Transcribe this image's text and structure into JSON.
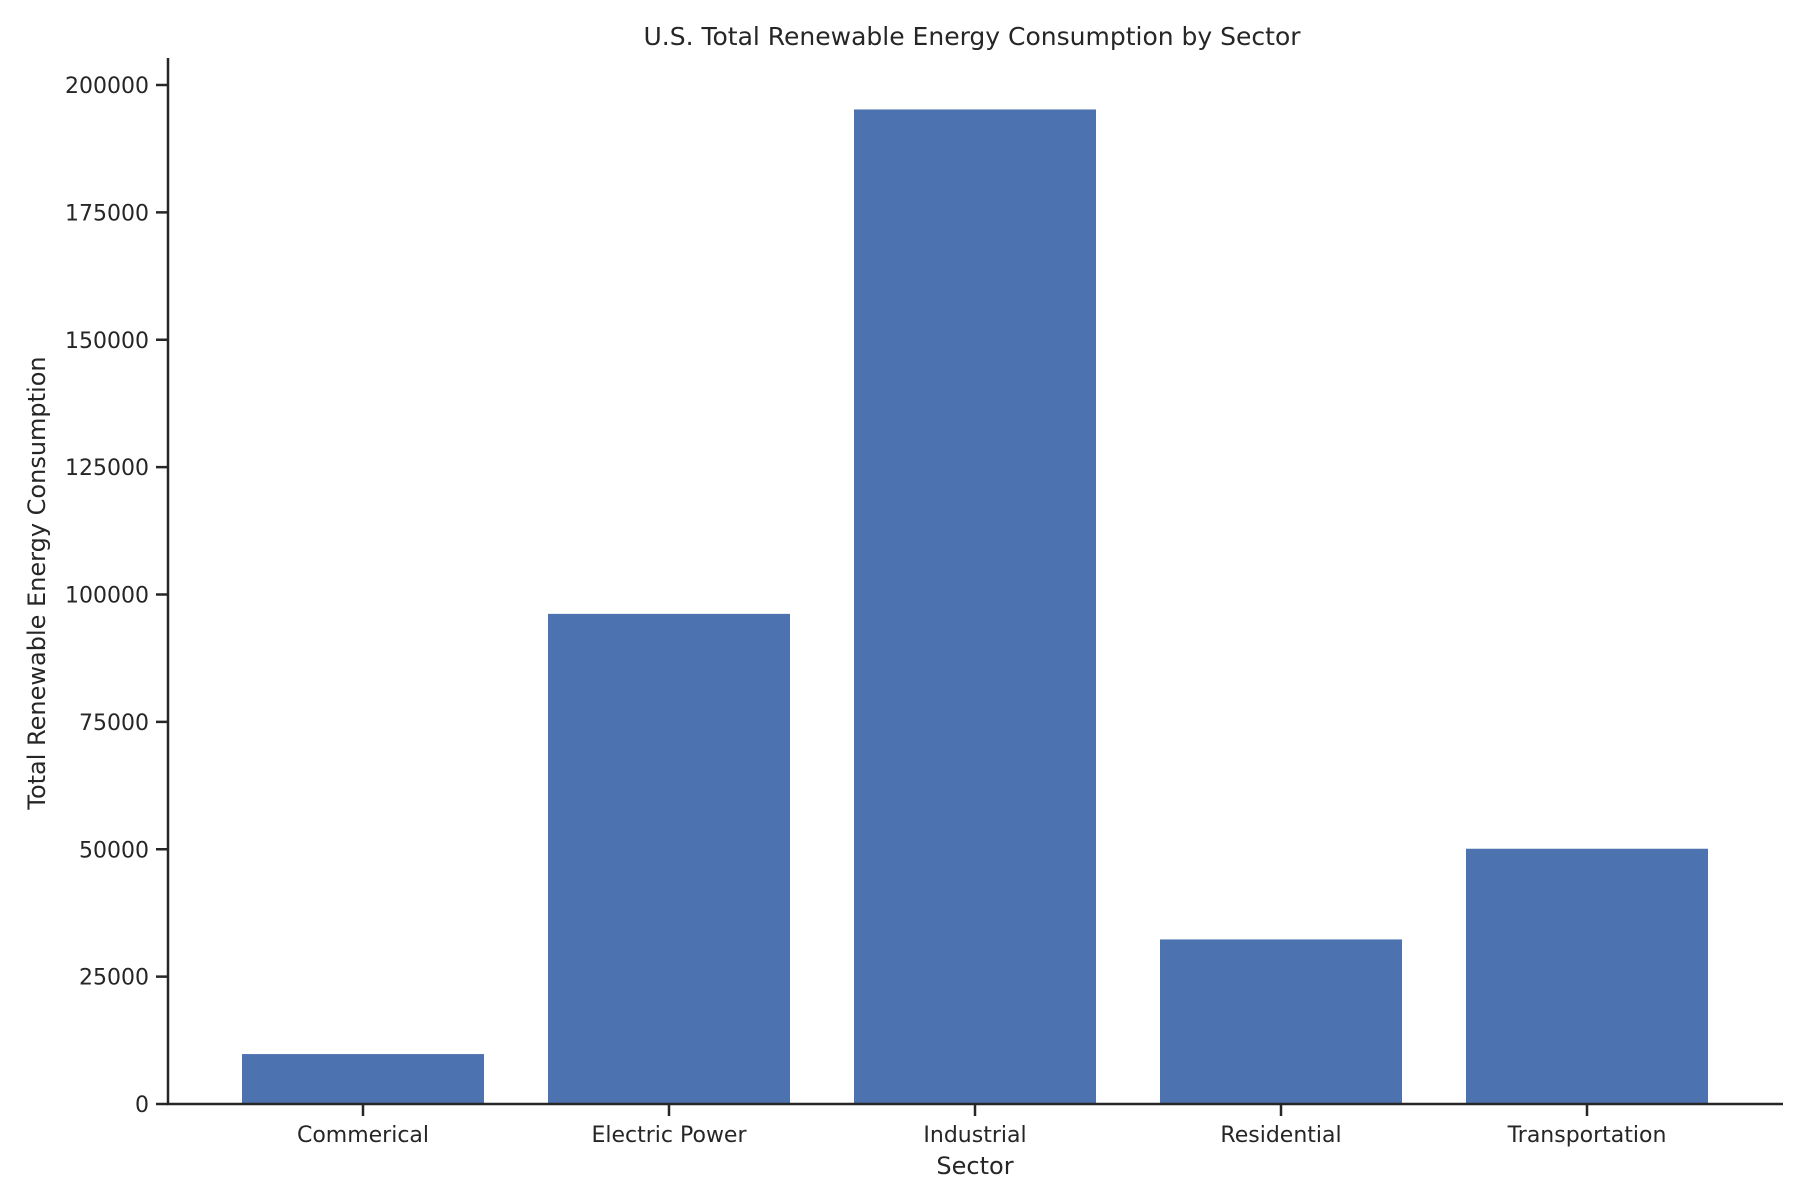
{
  "chart_data": {
    "type": "bar",
    "title": "U.S. Total Renewable Energy Consumption by Sector",
    "xlabel": "Sector",
    "ylabel": "Total Renewable Energy Consumption",
    "categories": [
      "Commerical",
      "Electric Power",
      "Industrial",
      "Residential",
      "Transportation"
    ],
    "values": [
      9800,
      96200,
      195200,
      32300,
      50100
    ],
    "ylim": [
      0,
      205000
    ],
    "yticks": [
      0,
      25000,
      50000,
      75000,
      100000,
      125000,
      150000,
      175000,
      200000
    ],
    "bar_color": "#4c72b0",
    "grid": false,
    "legend": "none"
  }
}
